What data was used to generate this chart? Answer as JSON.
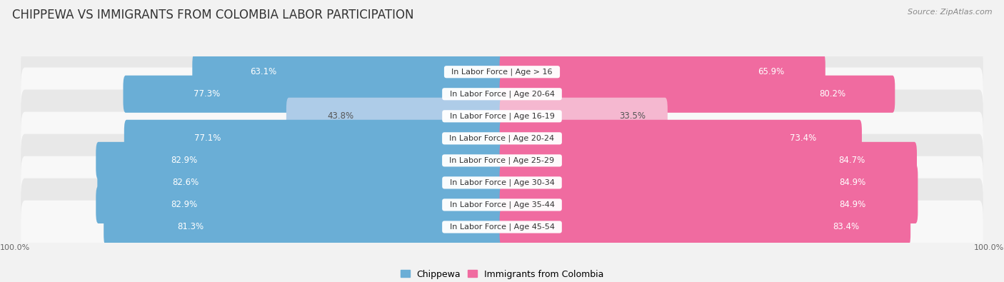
{
  "title": "CHIPPEWA VS IMMIGRANTS FROM COLOMBIA LABOR PARTICIPATION",
  "source": "Source: ZipAtlas.com",
  "categories": [
    "In Labor Force | Age > 16",
    "In Labor Force | Age 20-64",
    "In Labor Force | Age 16-19",
    "In Labor Force | Age 20-24",
    "In Labor Force | Age 25-29",
    "In Labor Force | Age 30-34",
    "In Labor Force | Age 35-44",
    "In Labor Force | Age 45-54"
  ],
  "chippewa_values": [
    63.1,
    77.3,
    43.8,
    77.1,
    82.9,
    82.6,
    82.9,
    81.3
  ],
  "colombia_values": [
    65.9,
    80.2,
    33.5,
    73.4,
    84.7,
    84.9,
    84.9,
    83.4
  ],
  "chippewa_color": "#6aaed6",
  "chippewa_color_light": "#aecce8",
  "colombia_color": "#f06ba0",
  "colombia_color_light": "#f5b8d0",
  "bar_height": 0.68,
  "background_color": "#f2f2f2",
  "row_bg_even": "#e8e8e8",
  "row_bg_odd": "#f8f8f8",
  "max_value": 100.0,
  "label_fontsize": 8.5,
  "title_fontsize": 12,
  "source_fontsize": 8,
  "legend_fontsize": 9,
  "tick_fontsize": 8
}
